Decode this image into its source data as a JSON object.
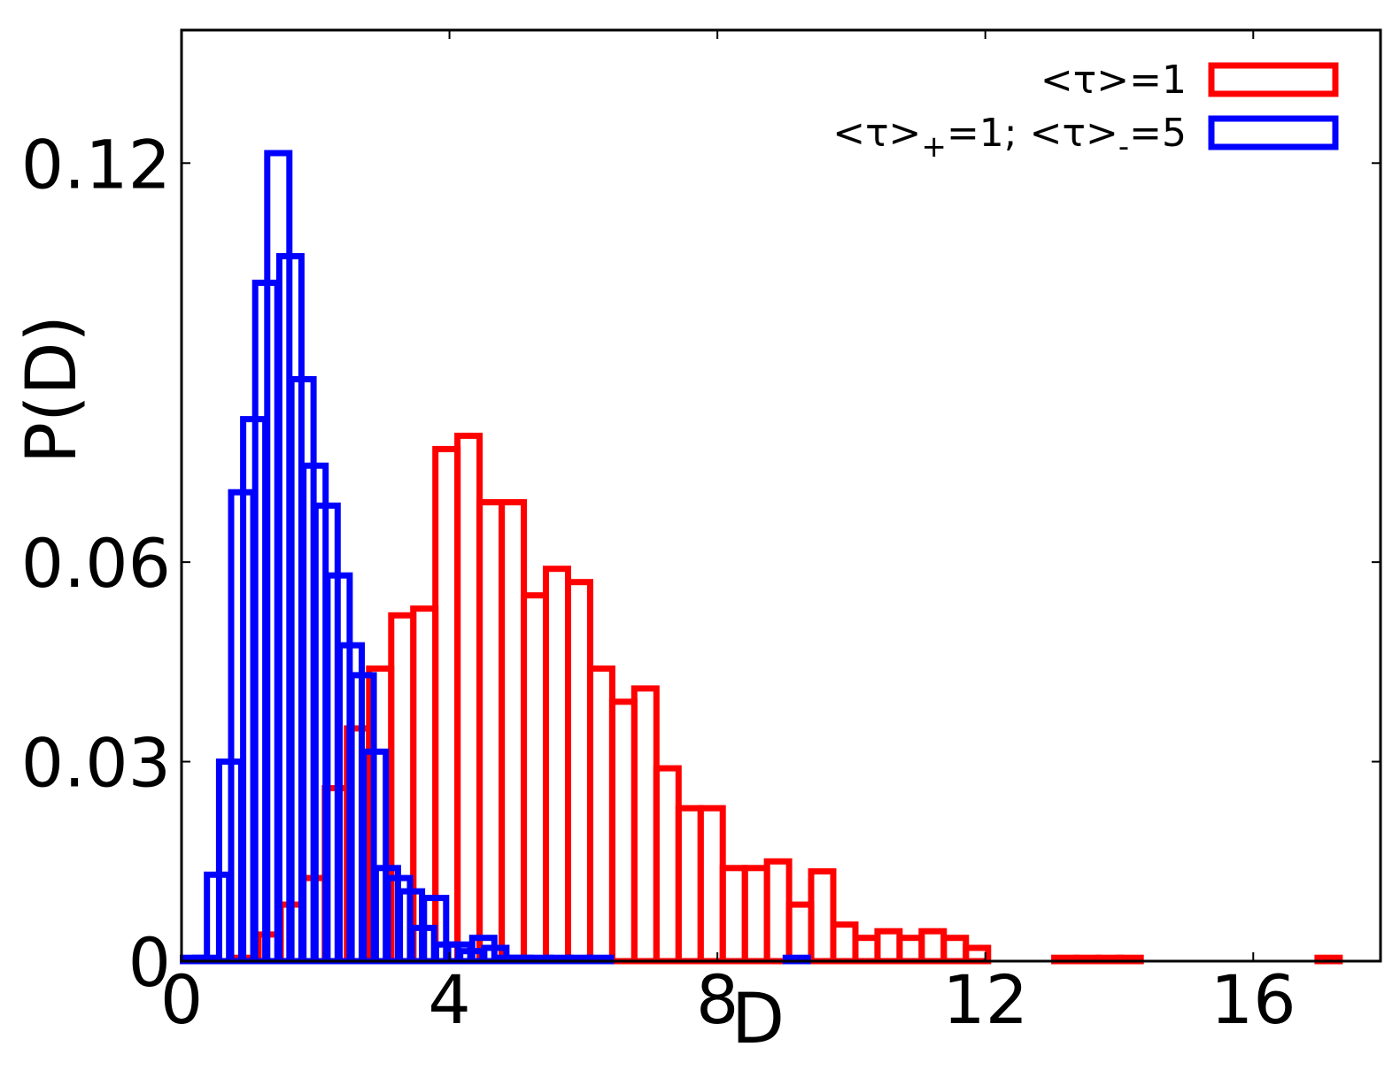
{
  "chart_data": {
    "type": "bar",
    "xlabel": "D",
    "ylabel": "P(D)",
    "xlim": [
      0,
      17.9
    ],
    "ylim": [
      0,
      0.14
    ],
    "x_ticks": [
      0,
      4,
      8,
      12,
      16
    ],
    "x_tick_labels": [
      "0",
      "4",
      "8",
      "12",
      "16"
    ],
    "y_ticks": [
      0,
      0.03,
      0.06,
      0.12
    ],
    "y_tick_labels": [
      "0",
      "0.03",
      "0.06",
      "0.12"
    ],
    "bin_width": 0.33,
    "legend_position": "top-right",
    "series": [
      {
        "name_parts": [
          "<τ>=1"
        ],
        "color": "#ff0000",
        "bin_starts": [
          0.82,
          1.15,
          1.48,
          1.81,
          2.14,
          2.47,
          2.8,
          3.13,
          3.46,
          3.79,
          4.12,
          4.45,
          4.78,
          5.11,
          5.44,
          5.77,
          6.1,
          6.43,
          6.76,
          7.09,
          7.42,
          7.75,
          8.08,
          8.41,
          8.74,
          9.07,
          9.4,
          9.73,
          10.06,
          10.39,
          10.72,
          11.05,
          11.38,
          11.71,
          13.03,
          13.36,
          13.69,
          13.99,
          16.96
        ],
        "values": [
          0.0005,
          0.004,
          0.0085,
          0.0125,
          0.026,
          0.035,
          0.044,
          0.052,
          0.053,
          0.077,
          0.079,
          0.069,
          0.069,
          0.055,
          0.059,
          0.057,
          0.044,
          0.039,
          0.041,
          0.029,
          0.023,
          0.023,
          0.014,
          0.014,
          0.015,
          0.0085,
          0.0135,
          0.0055,
          0.0035,
          0.0045,
          0.0035,
          0.0045,
          0.0035,
          0.002,
          0.0005,
          0.0005,
          0.0005,
          0.0005,
          0.0005
        ]
      },
      {
        "name_parts": [
          "<τ>",
          "+",
          "=1; <τ>",
          "-",
          "=5"
        ],
        "color": "#0000ff",
        "bin_starts": [
          0.02,
          0.2,
          0.38,
          0.56,
          0.74,
          0.92,
          1.1,
          1.28,
          1.46,
          1.64,
          1.82,
          2.0,
          2.18,
          2.36,
          2.54,
          2.72,
          2.9,
          3.08,
          3.26,
          3.44,
          3.62,
          3.8,
          3.98,
          4.16,
          4.34,
          4.52,
          4.7,
          4.88,
          5.18,
          5.48,
          5.78,
          6.08,
          9.02
        ],
        "values": [
          0.0005,
          0.0005,
          0.013,
          0.03,
          0.0705,
          0.0815,
          0.102,
          0.1215,
          0.106,
          0.0875,
          0.0745,
          0.0685,
          0.058,
          0.0475,
          0.043,
          0.0315,
          0.014,
          0.0125,
          0.0105,
          0.005,
          0.0095,
          0.0025,
          0.0025,
          0.0015,
          0.0035,
          0.002,
          0.0005,
          0.0005,
          0.0005,
          0.0005,
          0.0005,
          0.0005,
          0.0005
        ]
      }
    ]
  }
}
